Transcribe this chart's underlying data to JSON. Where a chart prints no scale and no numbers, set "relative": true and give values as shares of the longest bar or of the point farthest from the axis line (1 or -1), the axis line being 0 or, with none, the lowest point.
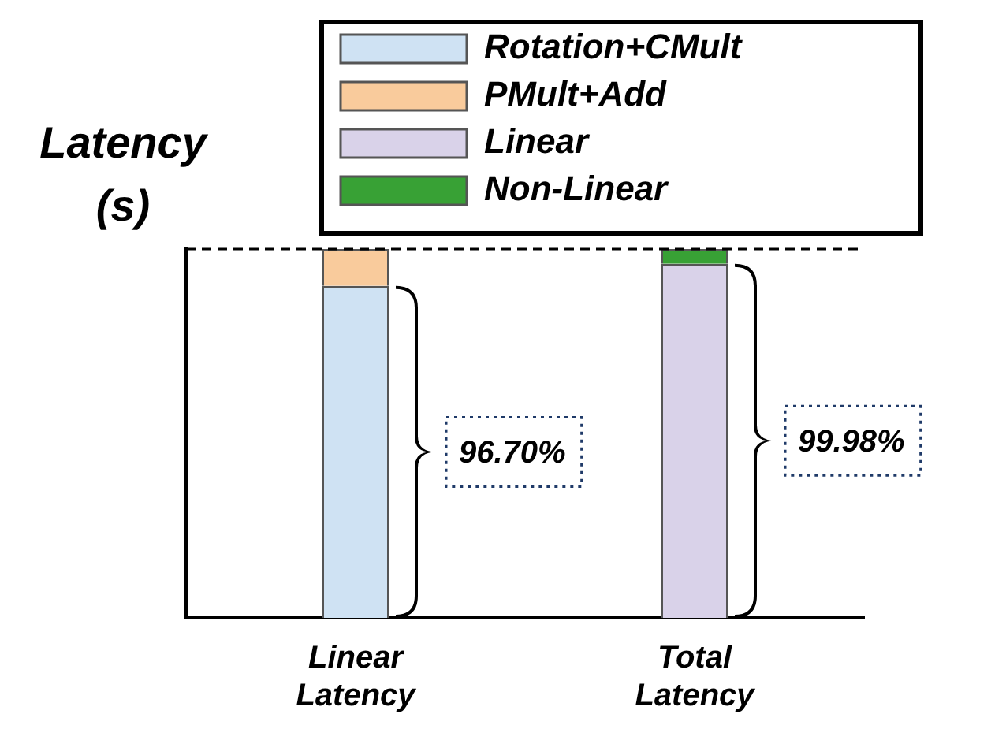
{
  "chart_data": {
    "type": "bar",
    "relative": true,
    "stacked": true,
    "ylabel": "Latency (s)",
    "categories": [
      "Linear Latency",
      "Total Latency"
    ],
    "series": [
      {
        "name": "Rotation+CMult",
        "color": "#cfe2f3",
        "values": [
          0.9,
          null
        ]
      },
      {
        "name": "PMult+Add",
        "color": "#f9cb9c",
        "values": [
          0.1,
          null
        ]
      },
      {
        "name": "Linear",
        "color": "#d9d2e9",
        "values": [
          null,
          0.96
        ]
      },
      {
        "name": "Non-Linear",
        "color": "#38a135",
        "values": [
          null,
          0.04
        ]
      }
    ],
    "annotations": [
      "96.70%",
      "99.98%"
    ],
    "ref_lines": [
      {
        "axis": "y",
        "value": 1,
        "line_style": "dashed",
        "color": "#000000"
      }
    ],
    "legend": "top",
    "grid": false
  }
}
